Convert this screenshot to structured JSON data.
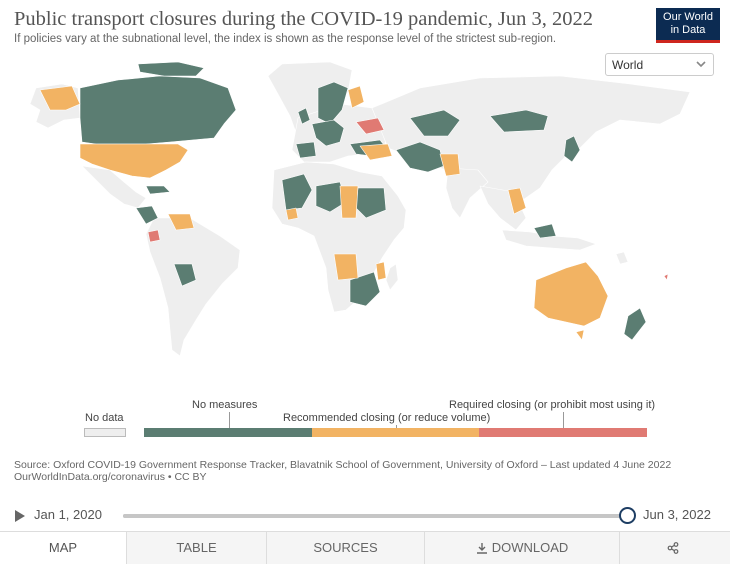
{
  "header": {
    "title": "Public transport closures during the COVID-19 pandemic, Jun 3, 2022",
    "subtitle": "If policies vary at the subnational level, the index is shown as the response level of the strictest sub-region.",
    "logo_line1": "Our World",
    "logo_line2": "in Data"
  },
  "region_select": {
    "value": "World",
    "icon": "chevron-down-icon"
  },
  "colors": {
    "no_data": "#eeeeee",
    "no_measures": "#5b7d72",
    "recommended": "#f2b363",
    "required": "#e07a73",
    "ocean": "#ffffff",
    "border": "#ffffff"
  },
  "legend": {
    "no_data": "No data",
    "no_measures": "No measures",
    "recommended": "Recommended closing (or reduce volume)",
    "required": "Required closing (or prohibit most using it)"
  },
  "source": {
    "line1": "Source: Oxford COVID-19 Government Response Tracker, Blavatnik School of Government, University of Oxford – Last updated 4 June 2022",
    "line2": "OurWorldInData.org/coronavirus • CC BY"
  },
  "timeline": {
    "start": "Jan 1, 2020",
    "end": "Jun 3, 2022",
    "position": 1.0
  },
  "tabs": [
    {
      "label": "MAP",
      "active": true
    },
    {
      "label": "TABLE",
      "active": false
    },
    {
      "label": "SOURCES",
      "active": false
    },
    {
      "label": "DOWNLOAD",
      "active": false,
      "icon": "download-icon"
    },
    {
      "label": "",
      "active": false,
      "icon": "share-icon"
    }
  ]
}
